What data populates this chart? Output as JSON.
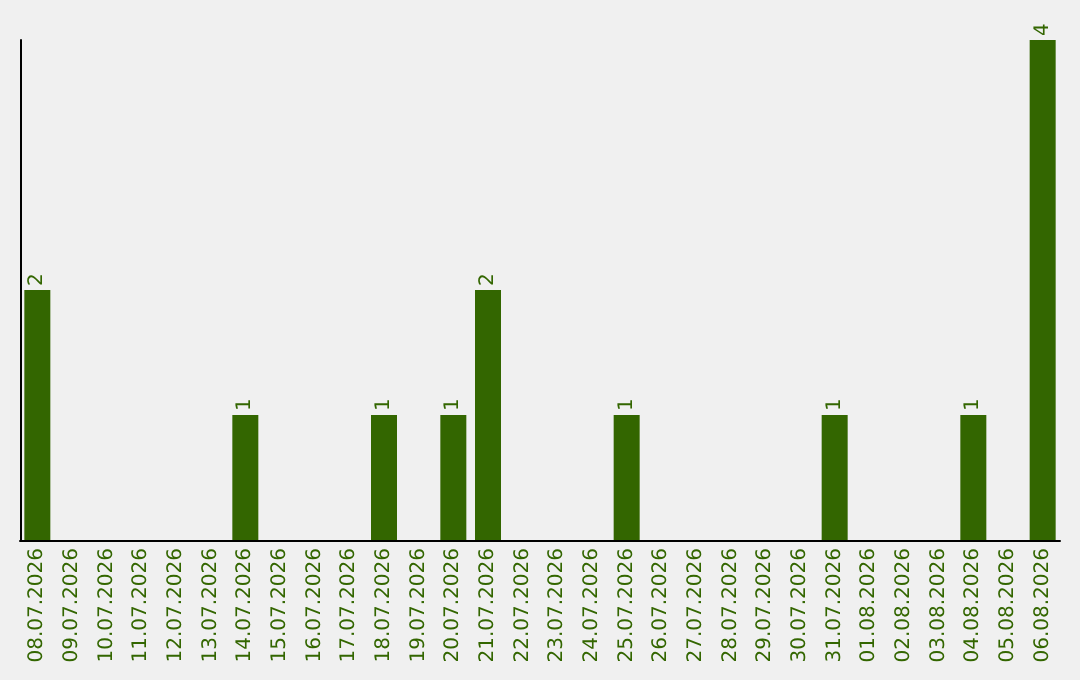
{
  "chart_data": {
    "type": "bar",
    "categories": [
      "08.07.2026",
      "09.07.2026",
      "10.07.2026",
      "11.07.2026",
      "12.07.2026",
      "13.07.2026",
      "14.07.2026",
      "15.07.2026",
      "16.07.2026",
      "17.07.2026",
      "18.07.2026",
      "19.07.2026",
      "20.07.2026",
      "21.07.2026",
      "22.07.2026",
      "23.07.2026",
      "24.07.2026",
      "25.07.2026",
      "26.07.2026",
      "27.07.2026",
      "28.07.2026",
      "29.07.2026",
      "30.07.2026",
      "31.07.2026",
      "01.08.2026",
      "02.08.2026",
      "03.08.2026",
      "04.08.2026",
      "05.08.2026",
      "06.08.2026"
    ],
    "values": [
      2,
      0,
      0,
      0,
      0,
      0,
      1,
      0,
      0,
      0,
      1,
      0,
      1,
      2,
      0,
      0,
      0,
      1,
      0,
      0,
      0,
      0,
      0,
      1,
      0,
      0,
      0,
      1,
      0,
      4
    ],
    "value_labels": [
      "2",
      null,
      null,
      null,
      null,
      null,
      "1",
      null,
      null,
      null,
      "1",
      null,
      "1",
      "2",
      null,
      null,
      null,
      "1",
      null,
      null,
      null,
      null,
      null,
      "1",
      null,
      null,
      null,
      "1",
      null,
      "4"
    ],
    "color": "#336600"
  }
}
